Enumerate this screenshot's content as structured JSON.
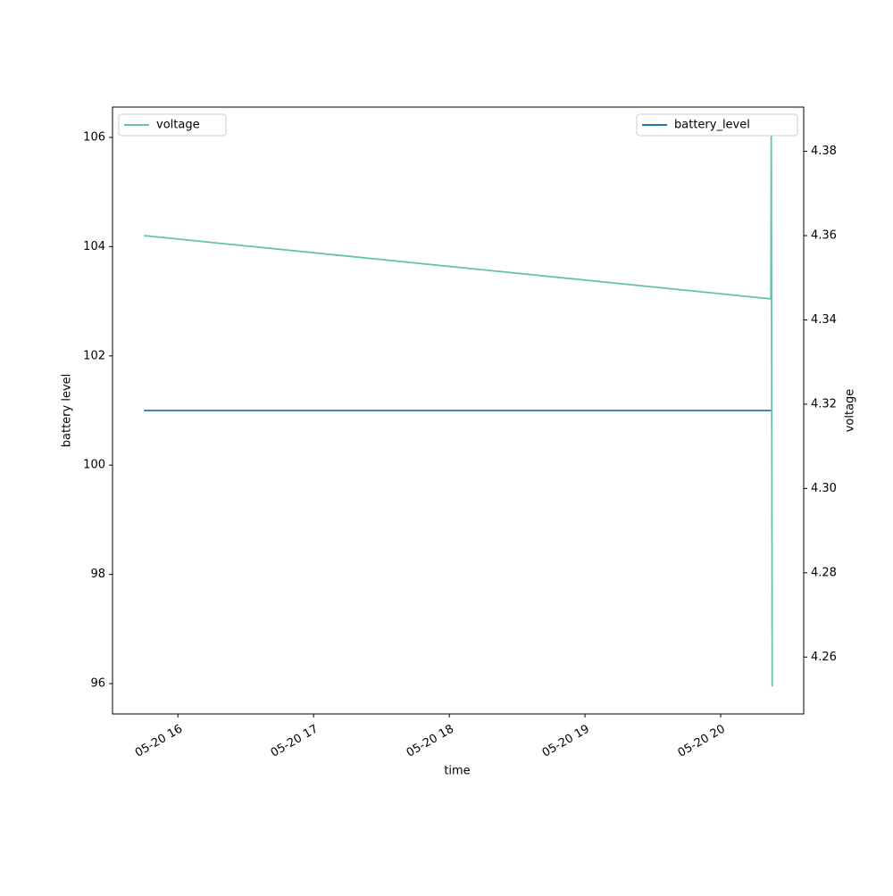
{
  "chart_data": {
    "type": "line",
    "x_label": "time",
    "y_label": "battery level",
    "y2_label": "voltage",
    "xlim": [
      15.518,
      20.612
    ],
    "xticks": [
      {
        "value": 16,
        "label": "05-20 16"
      },
      {
        "value": 17,
        "label": "05-20 17"
      },
      {
        "value": 18,
        "label": "05-20 18"
      },
      {
        "value": 19,
        "label": "05-20 19"
      },
      {
        "value": 20,
        "label": "05-20 20"
      }
    ],
    "ylim": [
      95.445,
      106.555
    ],
    "yticks": [
      96,
      98,
      100,
      102,
      104,
      106
    ],
    "y2lim": [
      4.2465,
      4.3905
    ],
    "y2ticks": [
      4.26,
      4.28,
      {
        "value": 4.3,
        "label": "4.30"
      },
      4.32,
      4.34,
      4.36,
      4.38
    ],
    "series": [
      {
        "name": "battery_level",
        "color": "#1f77b4",
        "x": [
          15.75,
          20.38
        ],
        "values": [
          101,
          101
        ],
        "legend": "upper right"
      },
      {
        "name": "voltage",
        "color": "#66c2a5",
        "axis": "y2",
        "x": [
          15.75,
          20.37,
          20.373,
          20.376,
          20.38
        ],
        "values": [
          4.36,
          4.345,
          4.384,
          4.33,
          4.253
        ],
        "legend": "upper left"
      }
    ]
  }
}
